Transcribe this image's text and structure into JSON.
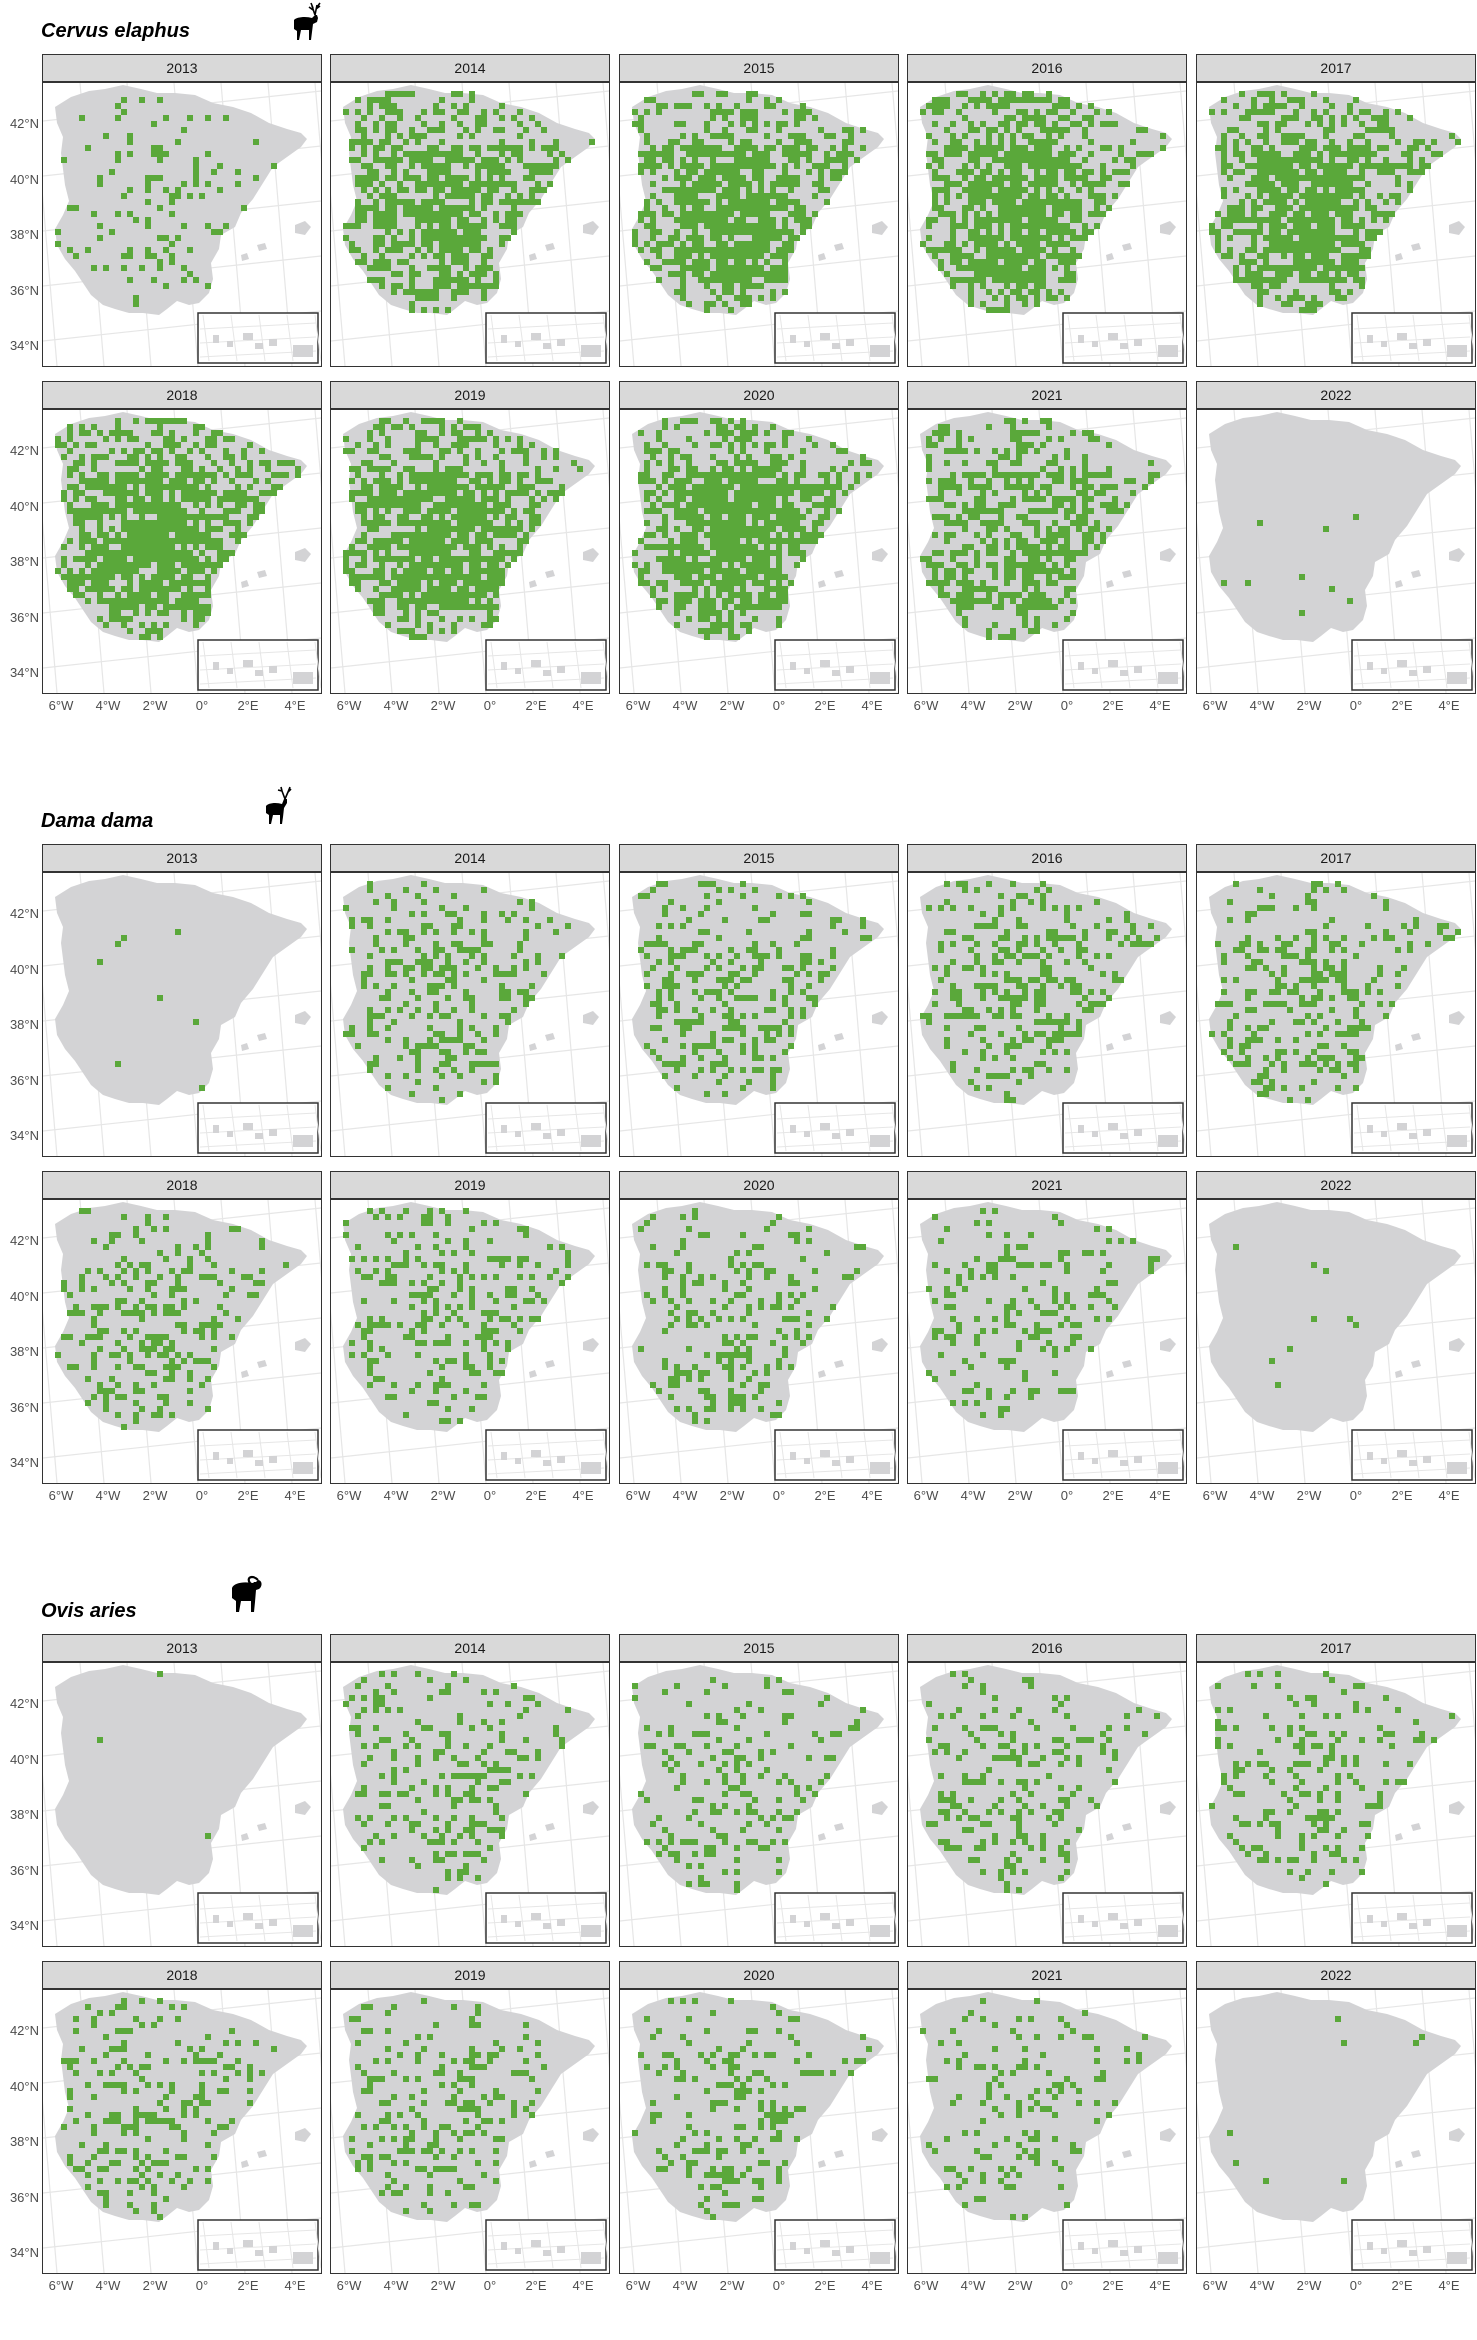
{
  "colors": {
    "land": "#d3d3d5",
    "presence": "#5aa83a",
    "graticule": "#e6e6e6",
    "panel_border": "#333333",
    "strip_bg": "#d9d9d9"
  },
  "years": [
    "2013",
    "2014",
    "2015",
    "2016",
    "2017",
    "2018",
    "2019",
    "2020",
    "2021",
    "2022"
  ],
  "axis": {
    "y_labels": [
      "42°N",
      "40°N",
      "38°N",
      "36°N",
      "34°N"
    ],
    "x_labels": [
      "6°W",
      "4°W",
      "2°W",
      "0°",
      "2°E",
      "4°E"
    ]
  },
  "species": [
    {
      "name": "Cervus elaphus",
      "icon": "red-deer-silhouette",
      "presence_level": [
        0.12,
        0.62,
        0.66,
        0.68,
        0.7,
        0.72,
        0.7,
        0.68,
        0.5,
        0.01
      ]
    },
    {
      "name": "Dama dama",
      "icon": "fallow-deer-silhouette",
      "presence_level": [
        0.01,
        0.28,
        0.3,
        0.3,
        0.3,
        0.26,
        0.26,
        0.24,
        0.2,
        0.01
      ]
    },
    {
      "name": "Ovis aries",
      "icon": "mouflon-silhouette",
      "presence_level": [
        0.005,
        0.22,
        0.22,
        0.22,
        0.22,
        0.22,
        0.24,
        0.22,
        0.16,
        0.005
      ]
    }
  ]
}
